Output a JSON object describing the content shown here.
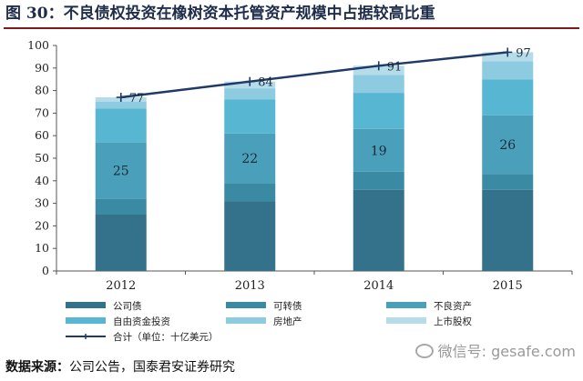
{
  "figure": {
    "title": "图 30：不良债权投资在橡树资本托管资产规模中占据较高比重",
    "source_label": "数据来源：",
    "source_text": "公司公告，国泰君安证券研究",
    "watermark": "微信号: gesafe.com"
  },
  "chart_data": {
    "type": "bar",
    "stacked": true,
    "categories": [
      "2012",
      "2013",
      "2014",
      "2015"
    ],
    "ylim": [
      0,
      100
    ],
    "yticks": [
      0,
      10,
      20,
      30,
      40,
      50,
      60,
      70,
      80,
      90,
      100
    ],
    "grid": false,
    "legend_position": "bottom",
    "series": [
      {
        "name": "公司债",
        "values": [
          25,
          31,
          36,
          36
        ],
        "color": "#34718a"
      },
      {
        "name": "可转债",
        "values": [
          7,
          8,
          8,
          7
        ],
        "color": "#3b8aa3"
      },
      {
        "name": "不良资产",
        "values": [
          25,
          22,
          19,
          26
        ],
        "color": "#4aa0bb"
      },
      {
        "name": "自由资金投资",
        "values": [
          15,
          15,
          16,
          16
        ],
        "color": "#57b6d2"
      },
      {
        "name": "房地产",
        "values": [
          3,
          5,
          8,
          8
        ],
        "color": "#8ccbe0"
      },
      {
        "name": "上市股权",
        "values": [
          2,
          3,
          4,
          4
        ],
        "color": "#b6dcea"
      }
    ],
    "total_line": {
      "name": "合计（单位：十亿美元）",
      "values": [
        77,
        84,
        91,
        97
      ],
      "color": "#1f3a66"
    },
    "data_labels": [
      {
        "series": "不良资产",
        "values": [
          25,
          22,
          19,
          26
        ]
      },
      {
        "series": "合计（单位：十亿美元）",
        "values": [
          77,
          84,
          91,
          97
        ]
      }
    ]
  }
}
